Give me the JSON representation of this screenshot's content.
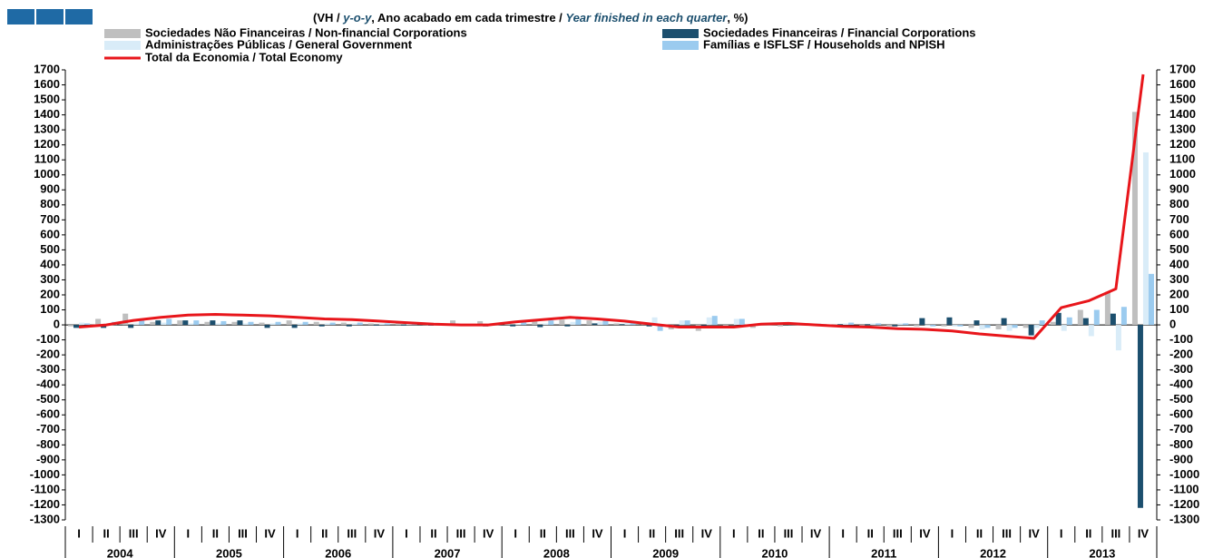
{
  "chart_data": {
    "type": "bar",
    "title_parts": [
      "(VH / ",
      "y-o-y",
      ", Ano acabado em cada trimestre / ",
      "Year finished in each quarter",
      ", %)"
    ],
    "categories": [
      "I",
      "II",
      "III",
      "IV",
      "I",
      "II",
      "III",
      "IV",
      "I",
      "II",
      "III",
      "IV",
      "I",
      "II",
      "III",
      "IV",
      "I",
      "II",
      "III",
      "IV",
      "I",
      "II",
      "III",
      "IV",
      "I",
      "II",
      "III",
      "IV",
      "I",
      "II",
      "III",
      "IV",
      "I",
      "II",
      "III",
      "IV",
      "I",
      "II",
      "III",
      "IV"
    ],
    "years": [
      "2004",
      "2005",
      "2006",
      "2007",
      "2008",
      "2009",
      "2010",
      "2011",
      "2012",
      "2013"
    ],
    "series": [
      {
        "name": "Sociedades Não Financeiras / Non-financial Corporations",
        "color": "#bfbfbf",
        "values": [
          -10,
          40,
          75,
          20,
          30,
          20,
          20,
          15,
          30,
          20,
          15,
          10,
          10,
          5,
          30,
          25,
          20,
          30,
          35,
          30,
          10,
          5,
          -30,
          -40,
          -20,
          -20,
          -10,
          0,
          5,
          -10,
          -10,
          -10,
          -10,
          -20,
          -30,
          -20,
          20,
          100,
          220,
          1420
        ]
      },
      {
        "name": "Sociedades Financeiras / Financial Corporations",
        "color": "#1c4f6e",
        "values": [
          -20,
          -20,
          -20,
          30,
          30,
          30,
          30,
          -20,
          -20,
          -10,
          -10,
          -5,
          -5,
          -5,
          -5,
          -10,
          -10,
          -15,
          -10,
          10,
          5,
          -10,
          -10,
          -10,
          0,
          0,
          0,
          0,
          5,
          5,
          -10,
          45,
          50,
          30,
          45,
          -70,
          80,
          45,
          75,
          -1220
        ]
      },
      {
        "name": "Administrações Públicas / General Government",
        "color": "#d9ecf8",
        "values": [
          15,
          10,
          10,
          15,
          10,
          10,
          10,
          10,
          10,
          10,
          10,
          10,
          20,
          10,
          5,
          5,
          5,
          10,
          20,
          20,
          30,
          50,
          30,
          50,
          40,
          10,
          10,
          10,
          10,
          10,
          10,
          -5,
          -10,
          -30,
          -40,
          -20,
          -40,
          -75,
          -170,
          1150
        ]
      },
      {
        "name": "Famílias e ISFLSF / Households and NPISH",
        "color": "#9bcbef",
        "values": [
          10,
          20,
          40,
          40,
          30,
          25,
          20,
          20,
          20,
          15,
          15,
          10,
          10,
          5,
          5,
          5,
          20,
          30,
          40,
          30,
          20,
          -40,
          30,
          60,
          40,
          10,
          10,
          5,
          15,
          10,
          10,
          -10,
          -10,
          -20,
          -20,
          30,
          50,
          100,
          120,
          340
        ]
      }
    ],
    "line": {
      "name": "Total da Economia / Total Economy",
      "color": "#e8161b",
      "values": [
        -15,
        0,
        30,
        50,
        65,
        70,
        65,
        60,
        50,
        40,
        35,
        25,
        15,
        5,
        0,
        0,
        20,
        35,
        50,
        40,
        25,
        5,
        -15,
        -15,
        -15,
        5,
        10,
        0,
        -10,
        -15,
        -25,
        -30,
        -40,
        -60,
        -75,
        -90,
        115,
        160,
        240,
        1670
      ]
    },
    "ylim": [
      -1300,
      1700
    ],
    "yticks": [
      -1300,
      -1200,
      -1100,
      -1000,
      -900,
      -800,
      -700,
      -600,
      -500,
      -400,
      -300,
      -200,
      -100,
      0,
      100,
      200,
      300,
      400,
      500,
      600,
      700,
      800,
      900,
      1000,
      1100,
      1200,
      1300,
      1400,
      1500,
      1600,
      1700
    ],
    "y2lim": [
      -1300,
      1700
    ],
    "y2ticks": [
      -1300,
      -1200,
      -1100,
      -1000,
      -900,
      -800,
      -700,
      -600,
      -500,
      -400,
      -300,
      -200,
      -100,
      0,
      100,
      200,
      300,
      400,
      500,
      600,
      700,
      800,
      900,
      1000,
      1100,
      1200,
      1300,
      1400,
      1500,
      1600,
      1700
    ]
  }
}
